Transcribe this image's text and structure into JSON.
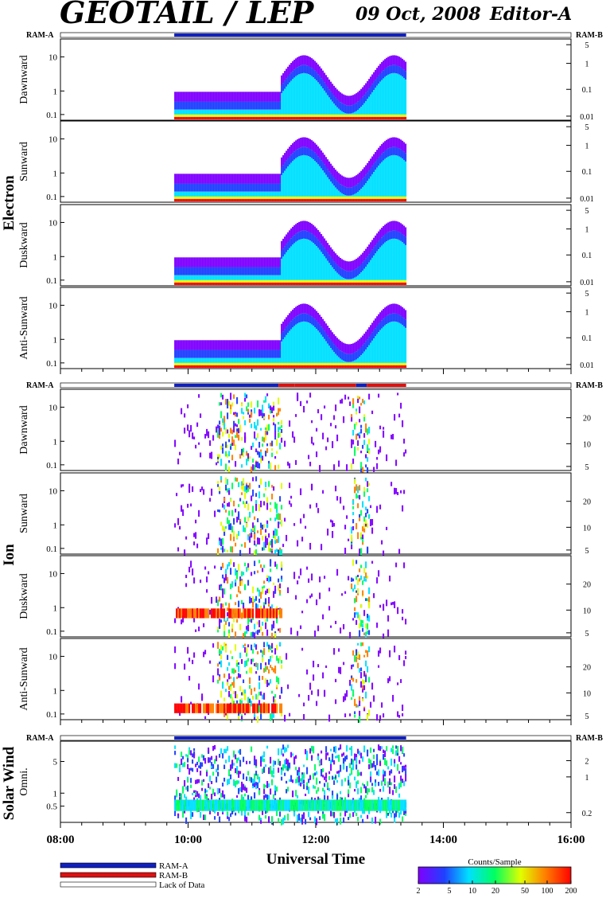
{
  "header": {
    "title": "GEOTAIL / LEP",
    "date": "09 Oct, 2008",
    "editor": "Editor-A"
  },
  "ram_labels": {
    "left": "RAM-A",
    "right": "RAM-B"
  },
  "x_axis": {
    "label": "Universal Time",
    "ticks": [
      "08:00",
      "10:00",
      "12:00",
      "14:00",
      "16:00"
    ]
  },
  "legend": {
    "items": [
      {
        "label": "RAM-A",
        "color": "#1020c0"
      },
      {
        "label": "RAM-B",
        "color": "#e01010"
      },
      {
        "label": "Lack of Data",
        "color": "#ffffff"
      }
    ]
  },
  "colorbar": {
    "title": "Counts/Sample",
    "ticks": [
      "2",
      "5",
      "10",
      "20",
      "50",
      "100",
      "200"
    ],
    "colors": [
      "#8000ff",
      "#2040ff",
      "#00e0ff",
      "#00ff60",
      "#e0ff00",
      "#ff8000",
      "#ff0000"
    ]
  },
  "chart_data": [
    {
      "type": "heatmap",
      "group": "Electron",
      "data_span": [
        "09:47",
        "13:25"
      ],
      "ram_segments": [
        {
          "from": "09:47",
          "to": "13:25",
          "mode": "RAM-A"
        }
      ],
      "panels": [
        {
          "name": "Dawnward",
          "yticks_left": [
            "10",
            "1",
            "0.1"
          ],
          "yticks_right": [
            "5",
            "1",
            "0.1",
            "0.01"
          ]
        },
        {
          "name": "Sunward",
          "yticks_left": [
            "10",
            "1",
            "0.1"
          ],
          "yticks_right": [
            "5",
            "1",
            "0.1",
            "0.01"
          ]
        },
        {
          "name": "Duskward",
          "yticks_left": [
            "10",
            "1",
            "0.1"
          ],
          "yticks_right": [
            "5",
            "1",
            "0.1",
            "0.01"
          ]
        },
        {
          "name": "Anti-Sunward",
          "yticks_left": [
            "10",
            "1",
            "0.1"
          ],
          "yticks_right": [
            "5",
            "1",
            "0.1",
            "0.01"
          ]
        }
      ]
    },
    {
      "type": "heatmap",
      "group": "Ion",
      "data_span": [
        "09:47",
        "13:25"
      ],
      "ram_segments": [
        {
          "from": "09:47",
          "to": "11:25",
          "mode": "RAM-A"
        },
        {
          "from": "11:25",
          "to": "11:40",
          "mode": "RAM-B"
        },
        {
          "from": "11:40",
          "to": "12:00",
          "mode": "RAM-B"
        },
        {
          "from": "12:00",
          "to": "12:38",
          "mode": "RAM-B"
        },
        {
          "from": "12:38",
          "to": "12:48",
          "mode": "RAM-A"
        },
        {
          "from": "12:48",
          "to": "13:25",
          "mode": "RAM-B"
        }
      ],
      "panels": [
        {
          "name": "Dawnward",
          "yticks_left": [
            "10",
            "1",
            "0.1"
          ],
          "yticks_right": [
            "20",
            "10",
            "5"
          ]
        },
        {
          "name": "Sunward",
          "yticks_left": [
            "10",
            "1",
            "0.1"
          ],
          "yticks_right": [
            "20",
            "10",
            "5"
          ]
        },
        {
          "name": "Duskward",
          "yticks_left": [
            "10",
            "1",
            "0.1"
          ],
          "yticks_right": [
            "20",
            "10",
            "5"
          ]
        },
        {
          "name": "Anti-Sunward",
          "yticks_left": [
            "10",
            "1",
            "0.1"
          ],
          "yticks_right": [
            "20",
            "10",
            "5"
          ]
        }
      ]
    },
    {
      "type": "heatmap",
      "group": "Solar Wind",
      "data_span": [
        "09:47",
        "13:25"
      ],
      "ram_segments": [
        {
          "from": "09:47",
          "to": "13:25",
          "mode": "RAM-A"
        }
      ],
      "panels": [
        {
          "name": "Omni.",
          "yticks_left": [
            "5",
            "1",
            "0.5"
          ],
          "yticks_right": [
            "2",
            "1",
            "0.2"
          ]
        }
      ]
    }
  ]
}
